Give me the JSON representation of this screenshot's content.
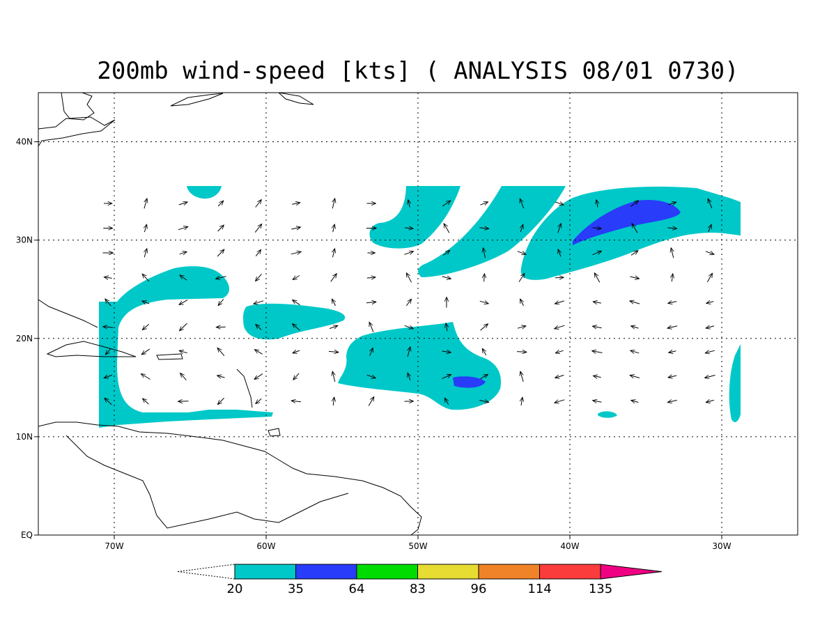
{
  "title": "200mb wind-speed [kts] ( ANALYSIS 08/01 0730)",
  "map": {
    "lon_range": [
      -75,
      -25
    ],
    "lat_range": [
      0,
      45
    ],
    "x_ticks": [
      {
        "lon": -70,
        "label": "70W"
      },
      {
        "lon": -60,
        "label": "60W"
      },
      {
        "lon": -50,
        "label": "50W"
      },
      {
        "lon": -40,
        "label": "40W"
      },
      {
        "lon": -30,
        "label": "30W"
      }
    ],
    "y_ticks": [
      {
        "lat": 40,
        "label": "40N"
      },
      {
        "lat": 30,
        "label": "30N"
      },
      {
        "lat": 20,
        "label": "20N"
      },
      {
        "lat": 10,
        "label": "10N"
      },
      {
        "lat": 0,
        "label": "EQ"
      }
    ],
    "grid": "dotted"
  },
  "colorbar": {
    "labels": [
      "20",
      "35",
      "64",
      "83",
      "96",
      "114",
      "135"
    ],
    "colors": [
      "#00c8c8",
      "#283cfa",
      "#00dc00",
      "#e6dc32",
      "#f08228",
      "#fa3c3c",
      "#f00082"
    ]
  }
}
